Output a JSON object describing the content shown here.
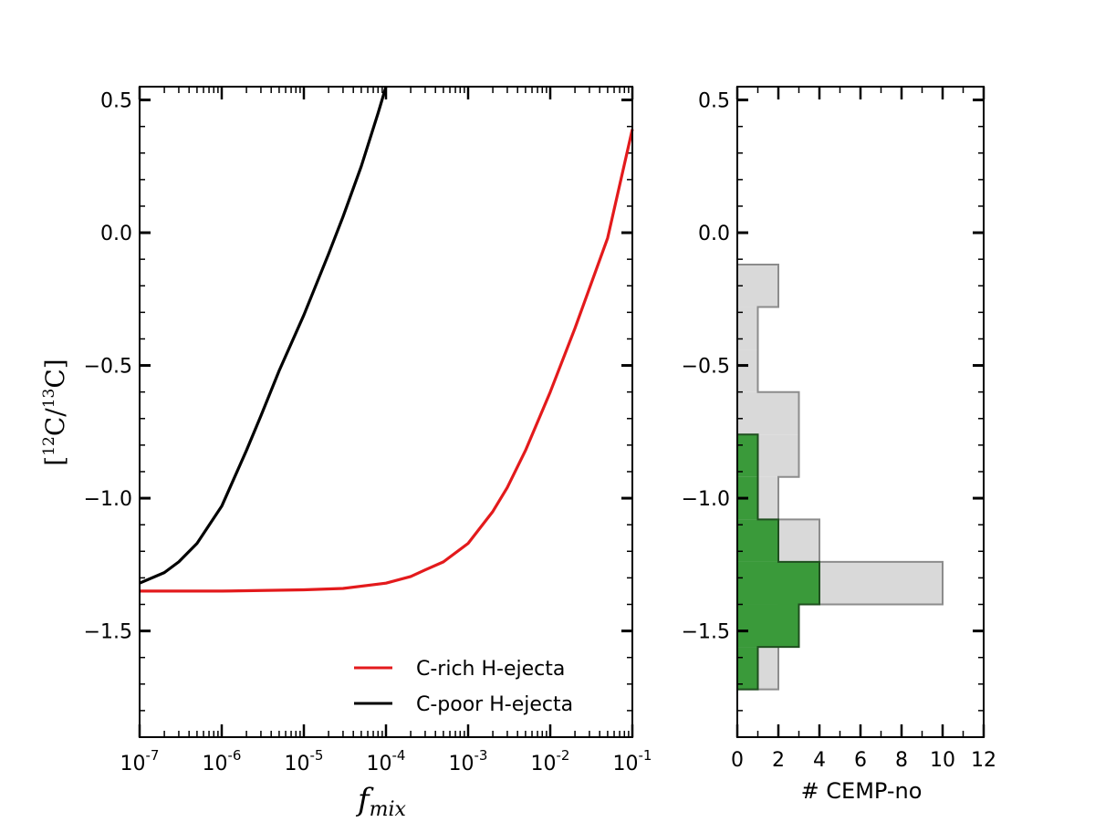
{
  "chart_data": [
    {
      "type": "line",
      "xscale": "log",
      "xlim": [
        1e-07,
        0.1
      ],
      "ylim": [
        -1.9,
        0.55
      ],
      "xlabel": "f",
      "xlabel_sub": "mix",
      "ylabel_parts": [
        "[",
        "12",
        "C/",
        "13",
        "C]"
      ],
      "yticks": [
        0.5,
        0.0,
        -0.5,
        -1.0,
        -1.5
      ],
      "ytick_labels": [
        "0.5",
        "0.0",
        "−0.5",
        "−1.0",
        "−1.5"
      ],
      "xtick_exponents": [
        "-7",
        "-6",
        "-5",
        "-4",
        "-3",
        "-2",
        "-1"
      ],
      "xtick_base": "10",
      "legend_position": "lower-right",
      "series": [
        {
          "name": "C-rich H-ejecta",
          "color": "#e31a1c",
          "x": [
            1e-07,
            1e-06,
            1e-05,
            3e-05,
            0.0001,
            0.0002,
            0.0003,
            0.0005,
            0.001,
            0.002,
            0.003,
            0.005,
            0.01,
            0.02,
            0.05,
            0.1
          ],
          "y": [
            -1.35,
            -1.35,
            -1.345,
            -1.34,
            -1.32,
            -1.295,
            -1.27,
            -1.24,
            -1.17,
            -1.05,
            -0.96,
            -0.82,
            -0.6,
            -0.36,
            -0.02,
            0.39
          ]
        },
        {
          "name": "C-poor H-ejecta",
          "color": "#000000",
          "x": [
            1e-07,
            2e-07,
            3e-07,
            5e-07,
            1e-06,
            2e-06,
            3e-06,
            5e-06,
            1e-05,
            2e-05,
            3e-05,
            5e-05,
            8e-05,
            0.0001
          ],
          "y": [
            -1.32,
            -1.28,
            -1.24,
            -1.17,
            -1.03,
            -0.82,
            -0.69,
            -0.52,
            -0.31,
            -0.08,
            0.06,
            0.25,
            0.45,
            0.55
          ]
        }
      ]
    },
    {
      "type": "histogram",
      "orientation": "horizontal",
      "xlabel": "# CEMP-no",
      "xlim": [
        0,
        12
      ],
      "ylim": [
        -1.9,
        0.55
      ],
      "xticks": [
        0,
        2,
        4,
        6,
        8,
        10,
        12
      ],
      "xtick_labels": [
        "0",
        "2",
        "4",
        "6",
        "8",
        "10",
        "12"
      ],
      "yticks": [
        0.5,
        0.0,
        -0.5,
        -1.0,
        -1.5
      ],
      "ytick_labels": [
        "0.5",
        "0.0",
        "−0.5",
        "−1.0",
        "−1.5"
      ],
      "series": [
        {
          "name": "",
          "color": "#d9d9d9",
          "edge": "#8c8c8c",
          "bin_edges": [
            -1.72,
            -1.56,
            -1.4,
            -1.24,
            -1.08,
            -0.92,
            -0.76,
            -0.6,
            -0.44,
            -0.28,
            -0.12
          ],
          "counts": [
            2,
            2,
            10,
            4,
            2,
            3,
            3,
            1,
            1,
            2
          ]
        },
        {
          "name": "",
          "color": "#3a9a3a",
          "edge": "#1f4f1f",
          "bin_edges": [
            -1.72,
            -1.56,
            -1.4,
            -1.24,
            -1.08,
            -0.92,
            -0.76
          ],
          "counts": [
            1,
            3,
            4,
            2,
            1,
            1
          ]
        }
      ]
    }
  ]
}
